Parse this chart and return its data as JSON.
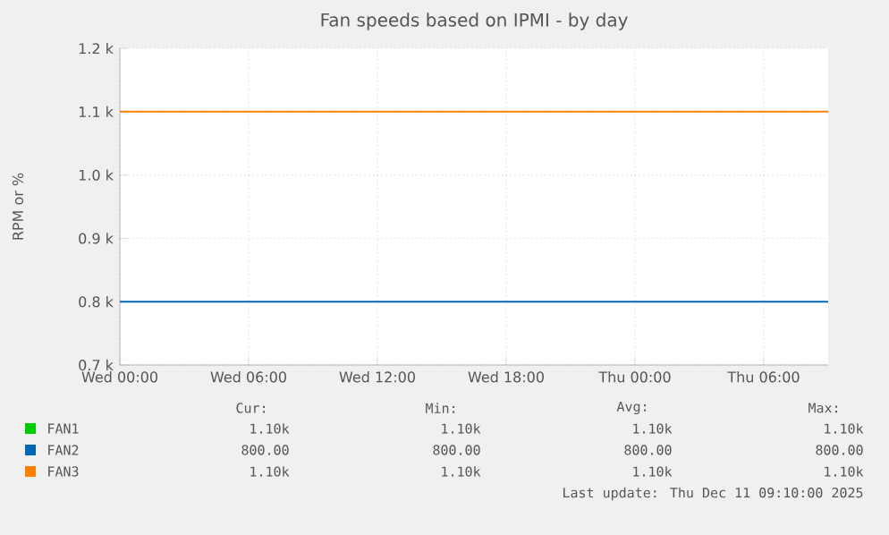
{
  "chart_data": {
    "type": "line",
    "title": "Fan speeds based on IPMI - by day",
    "ylabel": "RPM or %",
    "x": [
      "2025-12-10T00:00",
      "2025-12-11T09:00"
    ],
    "series": [
      {
        "name": "FAN1",
        "color": "#00cc00",
        "values": [
          null,
          null
        ]
      },
      {
        "name": "FAN2",
        "color": "#0066b3",
        "values": [
          800,
          800
        ]
      },
      {
        "name": "FAN3",
        "color": "#ff8000",
        "values": [
          1100,
          1100
        ]
      }
    ],
    "xlim": [
      "2025-12-10T00:00",
      "2025-12-11T09:00"
    ],
    "xticks": [
      {
        "value": "2025-12-10T00:00",
        "label": "Wed 00:00"
      },
      {
        "value": "2025-12-10T06:00",
        "label": "Wed 06:00"
      },
      {
        "value": "2025-12-10T12:00",
        "label": "Wed 12:00"
      },
      {
        "value": "2025-12-10T18:00",
        "label": "Wed 18:00"
      },
      {
        "value": "2025-12-11T00:00",
        "label": "Thu 00:00"
      },
      {
        "value": "2025-12-11T06:00",
        "label": "Thu 06:00"
      }
    ],
    "ylim": [
      700,
      1200
    ],
    "yticks": [
      {
        "value": 700,
        "label": "0.7 k"
      },
      {
        "value": 800,
        "label": "0.8 k"
      },
      {
        "value": 900,
        "label": "0.9 k"
      },
      {
        "value": 1000,
        "label": "1.0 k"
      },
      {
        "value": 1100,
        "label": "1.1 k"
      },
      {
        "value": 1200,
        "label": "1.2 k"
      }
    ],
    "grid": true,
    "legend": "bottom",
    "marker": "none",
    "line_style": "solid",
    "annotations": [
      "Cur:",
      "Min:",
      "Avg:",
      "Max:",
      "1.10k",
      "1.10k",
      "1.10k",
      "1.10k",
      "800.00",
      "800.00",
      "800.00",
      "800.00",
      "1.10k",
      "1.10k",
      "1.10k",
      "1.10k",
      "Last update: Thu Dec 11 09:10:00 2025"
    ]
  }
}
